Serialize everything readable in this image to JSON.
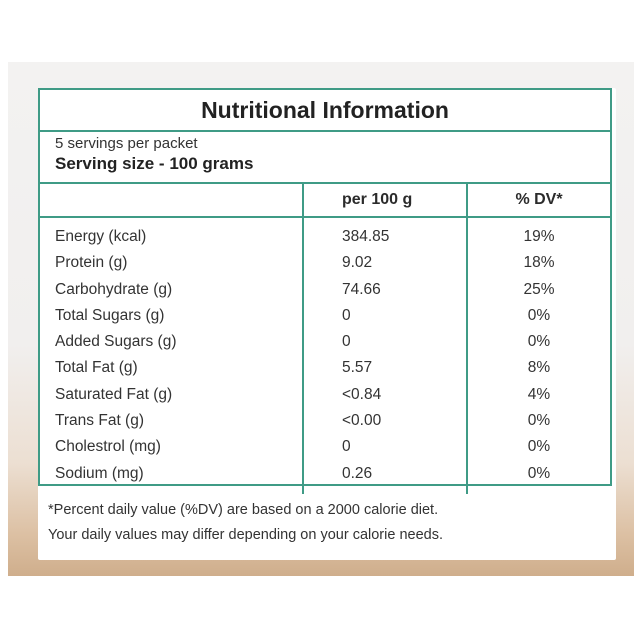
{
  "title": "Nutritional Information",
  "servings_per_packet": "5 servings per packet",
  "serving_size": "Serving size - 100 grams",
  "headers": {
    "nutrient": "",
    "per100": "per 100 g",
    "dv": "% DV*"
  },
  "rows": [
    {
      "name": "Energy (kcal)",
      "per100": "384.85",
      "dv": "19%"
    },
    {
      "name": "Protein (g)",
      "per100": "9.02",
      "dv": "18%"
    },
    {
      "name": "Carbohydrate (g)",
      "per100": "74.66",
      "dv": "25%"
    },
    {
      "name": "Total Sugars (g)",
      "per100": "0",
      "dv": "0%"
    },
    {
      "name": "Added Sugars (g)",
      "per100": "0",
      "dv": "0%"
    },
    {
      "name": "Total Fat (g)",
      "per100": "5.57",
      "dv": "8%"
    },
    {
      "name": "Saturated Fat (g)",
      "per100": "<0.84",
      "dv": "4%"
    },
    {
      "name": "Trans Fat (g)",
      "per100": "<0.00",
      "dv": "0%"
    },
    {
      "name": "Cholestrol (mg)",
      "per100": "0",
      "dv": "0%"
    },
    {
      "name": "Sodium (mg)",
      "per100": "0.26",
      "dv": "0%"
    }
  ],
  "footnote_1": "*Percent daily value (%DV) are based on a 2000 calorie diet.",
  "footnote_2": "Your daily values may differ depending on your calorie needs.",
  "colors": {
    "border": "#3f9b86",
    "text": "#2b2b2b"
  }
}
